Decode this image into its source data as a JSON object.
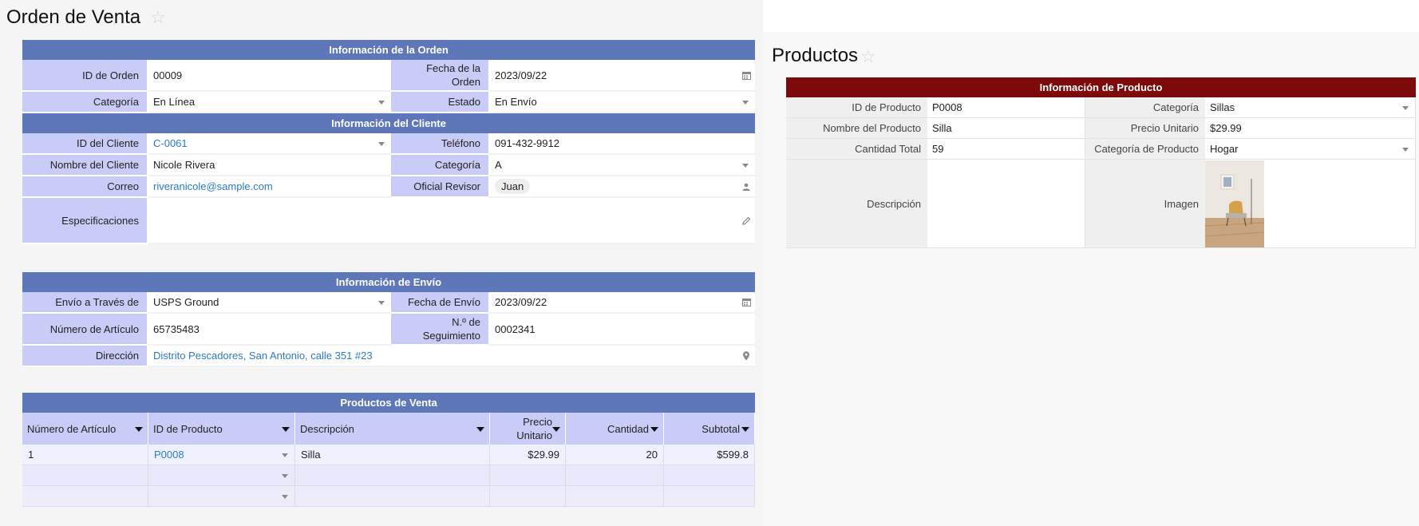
{
  "orden": {
    "title": "Orden de Venta",
    "order_info": {
      "header": "Información de la Orden",
      "id_label": "ID de Orden",
      "id_value": "00009",
      "fecha_label": "Fecha de la Orden",
      "fecha_value": "2023/09/22",
      "categoria_label": "Categoría",
      "categoria_value": "En Línea",
      "estado_label": "Estado",
      "estado_value": "En Envío"
    },
    "client_info": {
      "header": "Información del Cliente",
      "id_label": "ID del Cliente",
      "id_value": "C-0061",
      "telefono_label": "Teléfono",
      "telefono_value": "091-432-9912",
      "nombre_label": "Nombre del Cliente",
      "nombre_value": "Nicole Rivera",
      "categoria_label": "Categoría",
      "categoria_value": "A",
      "correo_label": "Correo",
      "correo_value": "riveranicole@sample.com",
      "oficial_label": "Oficial Revisor",
      "oficial_value": "Juan",
      "especificaciones_label": "Especificaciones",
      "especificaciones_value": ""
    },
    "shipping_info": {
      "header": "Información de Envío",
      "via_label": "Envío a Través de",
      "via_value": "USPS Ground",
      "fecha_label": "Fecha de Envío",
      "fecha_value": "2023/09/22",
      "articulo_label": "Número de Artículo",
      "articulo_value": "65735483",
      "seguimiento_label": "N.º de Seguimiento",
      "seguimiento_value": "0002341",
      "direccion_label": "Dirección",
      "direccion_value": "Distrito Pescadores, San Antonio, calle 351 #23"
    },
    "products": {
      "header": "Productos de Venta",
      "columns": [
        "Número de Artículo",
        "ID de Producto",
        "Descripción",
        "Precio Unitario",
        "Cantidad",
        "Subtotal"
      ],
      "rows": [
        [
          "1",
          "P0008",
          "Silla",
          "$29.99",
          "20",
          "$599.8"
        ],
        [
          "",
          "",
          "",
          "",
          "",
          ""
        ],
        [
          "",
          "",
          "",
          "",
          "",
          ""
        ]
      ]
    }
  },
  "productos": {
    "title": "Productos",
    "header": "Información de Producto",
    "id_label": "ID de Producto",
    "id_value": "P0008",
    "categoria_label": "Categoría",
    "categoria_value": "Sillas",
    "nombre_label": "Nombre del Producto",
    "nombre_value": "Silla",
    "precio_label": "Precio Unitario",
    "precio_value": "$29.99",
    "cantidad_label": "Cantidad Total",
    "cantidad_value": "59",
    "catprod_label": "Categoría de Producto",
    "catprod_value": "Hogar",
    "descripcion_label": "Descripción",
    "descripcion_value": "",
    "imagen_label": "Imagen"
  },
  "colors": {
    "section_header": "#5e77b9",
    "label_bg": "#c9ccf7",
    "product_header": "#7c0a0a",
    "link": "#2a7bc6"
  }
}
